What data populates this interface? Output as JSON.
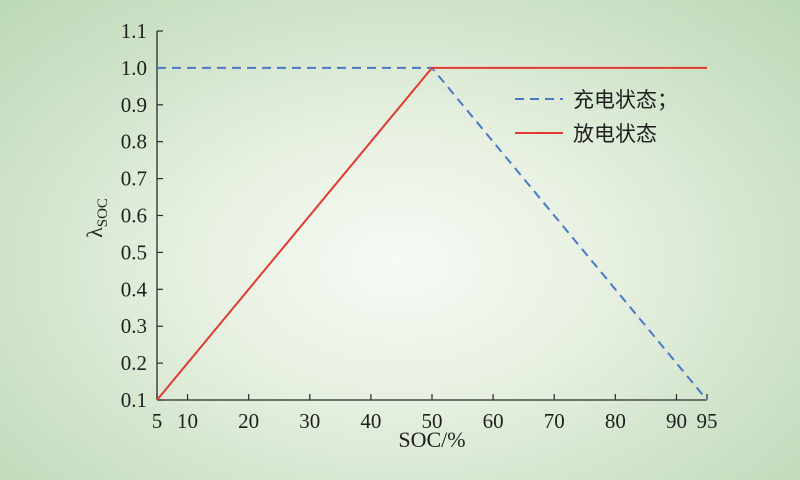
{
  "chart_data": {
    "type": "line",
    "title": "",
    "xlabel": "SOC/%",
    "ylabel": "λ",
    "ylabel_sub": "SOC",
    "xlim": [
      5,
      95
    ],
    "ylim": [
      0.1,
      1.1
    ],
    "x_ticks": [
      5,
      10,
      20,
      30,
      40,
      50,
      60,
      70,
      80,
      90,
      95
    ],
    "y_ticks": [
      0.1,
      0.2,
      0.3,
      0.4,
      0.5,
      0.6,
      0.7,
      0.8,
      0.9,
      1.0,
      1.1
    ],
    "y_tick_labels": [
      "0.1",
      "0.2",
      "0.3",
      "0.4",
      "0.5",
      "0.6",
      "0.7",
      "0.8",
      "0.9",
      "1.0",
      "1.1"
    ],
    "grid": false,
    "legend_position": "top-right",
    "series": [
      {
        "name": "充电状态；",
        "color": "#4a78c8",
        "dash": "dashed",
        "points": [
          [
            5,
            1.0
          ],
          [
            50,
            1.0
          ],
          [
            95,
            0.1
          ]
        ]
      },
      {
        "name": "放电状态",
        "color": "#e03a32",
        "dash": "solid",
        "points": [
          [
            5,
            0.1
          ],
          [
            50,
            1.0
          ],
          [
            95,
            1.0
          ]
        ]
      }
    ]
  }
}
